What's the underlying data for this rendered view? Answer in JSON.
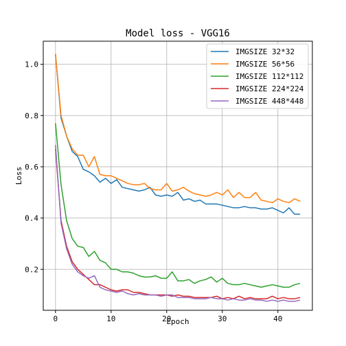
{
  "chart_data": {
    "type": "line",
    "title": "Model loss - VGG16",
    "xlabel": "Epoch",
    "ylabel": "Loss",
    "xlim": [
      -2.2,
      46.2
    ],
    "ylim": [
      0.04,
      1.09
    ],
    "xticks": [
      0,
      10,
      20,
      30,
      40
    ],
    "yticks": [
      0.2,
      0.4,
      0.6,
      0.8,
      1.0
    ],
    "xtick_labels": [
      "0",
      "10",
      "20",
      "30",
      "40"
    ],
    "ytick_labels": [
      "0.2",
      "0.4",
      "0.6",
      "0.8",
      "1.0"
    ],
    "grid": true,
    "legend_position": "top-right",
    "x": [
      0,
      1,
      2,
      3,
      4,
      5,
      6,
      7,
      8,
      9,
      10,
      11,
      12,
      13,
      14,
      15,
      16,
      17,
      18,
      19,
      20,
      21,
      22,
      23,
      24,
      25,
      26,
      27,
      28,
      29,
      30,
      31,
      32,
      33,
      34,
      35,
      36,
      37,
      38,
      39,
      40,
      41,
      42,
      43,
      44
    ],
    "series": [
      {
        "name": "IMGSIZE 32*32",
        "color": "#1f77b4",
        "values": [
          1.04,
          0.79,
          0.72,
          0.66,
          0.64,
          0.59,
          0.58,
          0.565,
          0.54,
          0.555,
          0.535,
          0.55,
          0.52,
          0.515,
          0.51,
          0.505,
          0.51,
          0.52,
          0.49,
          0.485,
          0.49,
          0.485,
          0.5,
          0.47,
          0.475,
          0.465,
          0.47,
          0.455,
          0.455,
          0.455,
          0.45,
          0.445,
          0.44,
          0.44,
          0.445,
          0.44,
          0.44,
          0.435,
          0.435,
          0.44,
          0.43,
          0.42,
          0.44,
          0.415,
          0.415
        ]
      },
      {
        "name": "IMGSIZE 56*56",
        "color": "#ff7f0e",
        "values": [
          1.04,
          0.8,
          0.72,
          0.67,
          0.645,
          0.645,
          0.6,
          0.64,
          0.57,
          0.565,
          0.565,
          0.555,
          0.545,
          0.535,
          0.53,
          0.53,
          0.535,
          0.515,
          0.51,
          0.51,
          0.535,
          0.505,
          0.51,
          0.52,
          0.505,
          0.495,
          0.49,
          0.485,
          0.49,
          0.5,
          0.49,
          0.51,
          0.48,
          0.5,
          0.48,
          0.48,
          0.5,
          0.47,
          0.465,
          0.46,
          0.475,
          0.465,
          0.46,
          0.475,
          0.465
        ]
      },
      {
        "name": "IMGSIZE 112*112",
        "color": "#2ca02c",
        "values": [
          0.77,
          0.53,
          0.39,
          0.32,
          0.29,
          0.285,
          0.25,
          0.27,
          0.235,
          0.225,
          0.2,
          0.2,
          0.19,
          0.19,
          0.185,
          0.175,
          0.17,
          0.17,
          0.175,
          0.165,
          0.165,
          0.19,
          0.155,
          0.155,
          0.16,
          0.145,
          0.155,
          0.16,
          0.17,
          0.15,
          0.165,
          0.145,
          0.14,
          0.14,
          0.145,
          0.14,
          0.135,
          0.13,
          0.135,
          0.14,
          0.135,
          0.13,
          0.13,
          0.14,
          0.145
        ]
      },
      {
        "name": "IMGSIZE 224*224",
        "color": "#d62728",
        "values": [
          0.67,
          0.39,
          0.29,
          0.23,
          0.2,
          0.18,
          0.16,
          0.14,
          0.14,
          0.13,
          0.12,
          0.115,
          0.12,
          0.12,
          0.11,
          0.11,
          0.105,
          0.1,
          0.1,
          0.1,
          0.1,
          0.095,
          0.1,
          0.095,
          0.095,
          0.09,
          0.09,
          0.09,
          0.09,
          0.095,
          0.085,
          0.09,
          0.085,
          0.095,
          0.085,
          0.09,
          0.085,
          0.085,
          0.085,
          0.095,
          0.085,
          0.09,
          0.085,
          0.085,
          0.09
        ]
      },
      {
        "name": "IMGSIZE 448*448",
        "color": "#9467bd",
        "values": [
          0.685,
          0.38,
          0.28,
          0.22,
          0.19,
          0.175,
          0.165,
          0.175,
          0.13,
          0.12,
          0.115,
          0.11,
          0.115,
          0.105,
          0.1,
          0.105,
          0.1,
          0.1,
          0.1,
          0.095,
          0.1,
          0.1,
          0.09,
          0.09,
          0.09,
          0.085,
          0.085,
          0.085,
          0.09,
          0.085,
          0.085,
          0.08,
          0.085,
          0.08,
          0.08,
          0.085,
          0.08,
          0.08,
          0.075,
          0.08,
          0.075,
          0.08,
          0.075,
          0.075,
          0.08
        ]
      }
    ]
  }
}
